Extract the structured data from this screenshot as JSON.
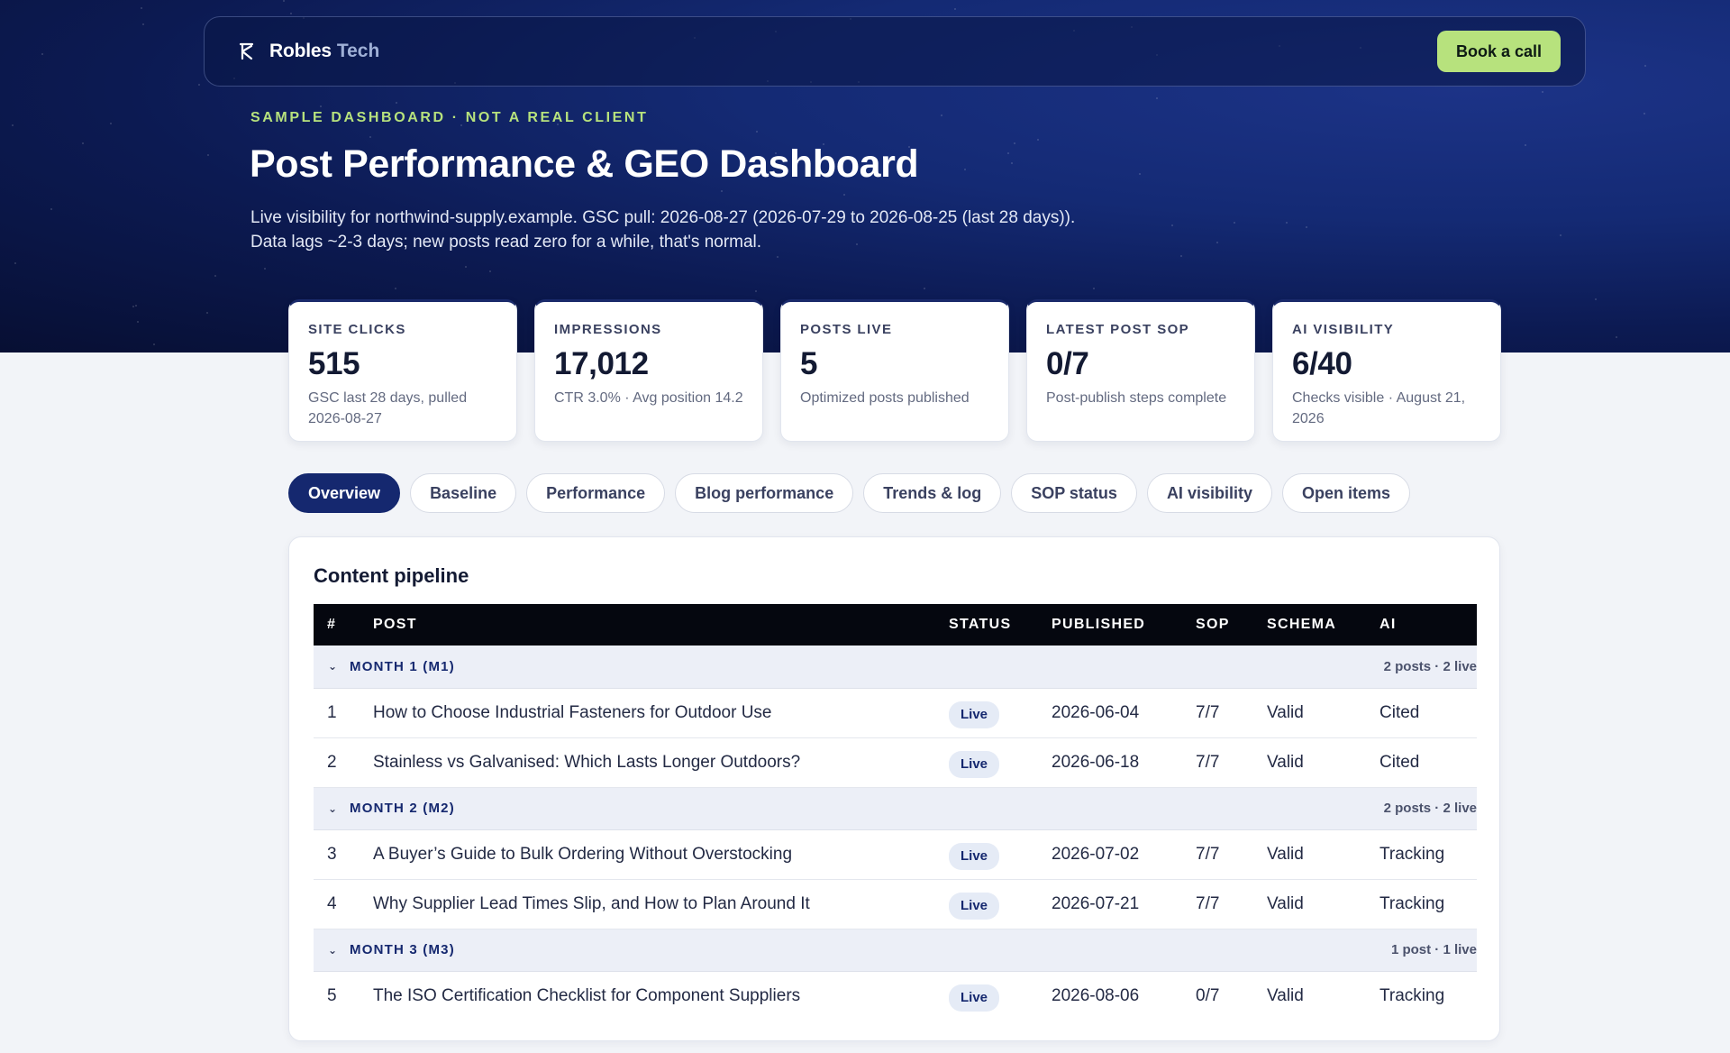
{
  "nav": {
    "brand_name": "Robles",
    "brand_sub": "Tech",
    "cta_label": "Book a call"
  },
  "hero": {
    "eyebrow": "SAMPLE DASHBOARD · NOT A REAL CLIENT",
    "title": "Post Performance & GEO Dashboard",
    "subtitle_line1": "Live visibility for northwind-supply.example. GSC pull: 2026-08-27 (2026-07-29 to 2026-08-25 (last 28 days)).",
    "subtitle_line2": "Data lags ~2-3 days; new posts read zero for a while, that's normal."
  },
  "kpis": [
    {
      "label": "SITE CLICKS",
      "value": "515",
      "note": "GSC last 28 days, pulled 2026-08-27"
    },
    {
      "label": "IMPRESSIONS",
      "value": "17,012",
      "note": "CTR 3.0% · Avg position 14.2"
    },
    {
      "label": "POSTS LIVE",
      "value": "5",
      "note": "Optimized posts published"
    },
    {
      "label": "LATEST POST SOP",
      "value": "0/7",
      "note": "Post-publish steps complete"
    },
    {
      "label": "AI VISIBILITY",
      "value": "6/40",
      "note": "Checks visible · August 21, 2026"
    }
  ],
  "tabs": [
    {
      "label": "Overview",
      "active": true
    },
    {
      "label": "Baseline",
      "active": false
    },
    {
      "label": "Performance",
      "active": false
    },
    {
      "label": "Blog performance",
      "active": false
    },
    {
      "label": "Trends & log",
      "active": false
    },
    {
      "label": "SOP status",
      "active": false
    },
    {
      "label": "AI visibility",
      "active": false
    },
    {
      "label": "Open items",
      "active": false
    }
  ],
  "pipeline": {
    "title": "Content pipeline",
    "columns": [
      "#",
      "POST",
      "STATUS",
      "PUBLISHED",
      "SOP",
      "SCHEMA",
      "AI"
    ],
    "groups": [
      {
        "label": "MONTH 1 (M1)",
        "count": "2 posts · 2 live",
        "rows": [
          {
            "num": "1",
            "post": "How to Choose Industrial Fasteners for Outdoor Use",
            "status": "Live",
            "published": "2026-06-04",
            "sop": "7/7",
            "schema": "Valid",
            "ai": "Cited"
          },
          {
            "num": "2",
            "post": "Stainless vs Galvanised: Which Lasts Longer Outdoors?",
            "status": "Live",
            "published": "2026-06-18",
            "sop": "7/7",
            "schema": "Valid",
            "ai": "Cited"
          }
        ]
      },
      {
        "label": "MONTH 2 (M2)",
        "count": "2 posts · 2 live",
        "rows": [
          {
            "num": "3",
            "post": "A Buyer’s Guide to Bulk Ordering Without Overstocking",
            "status": "Live",
            "published": "2026-07-02",
            "sop": "7/7",
            "schema": "Valid",
            "ai": "Tracking"
          },
          {
            "num": "4",
            "post": "Why Supplier Lead Times Slip, and How to Plan Around It",
            "status": "Live",
            "published": "2026-07-21",
            "sop": "7/7",
            "schema": "Valid",
            "ai": "Tracking"
          }
        ]
      },
      {
        "label": "MONTH 3 (M3)",
        "count": "1 post · 1 live",
        "rows": [
          {
            "num": "5",
            "post": "The ISO Certification Checklist for Component Suppliers",
            "status": "Live",
            "published": "2026-08-06",
            "sop": "0/7",
            "schema": "Valid",
            "ai": "Tracking"
          }
        ]
      }
    ]
  }
}
